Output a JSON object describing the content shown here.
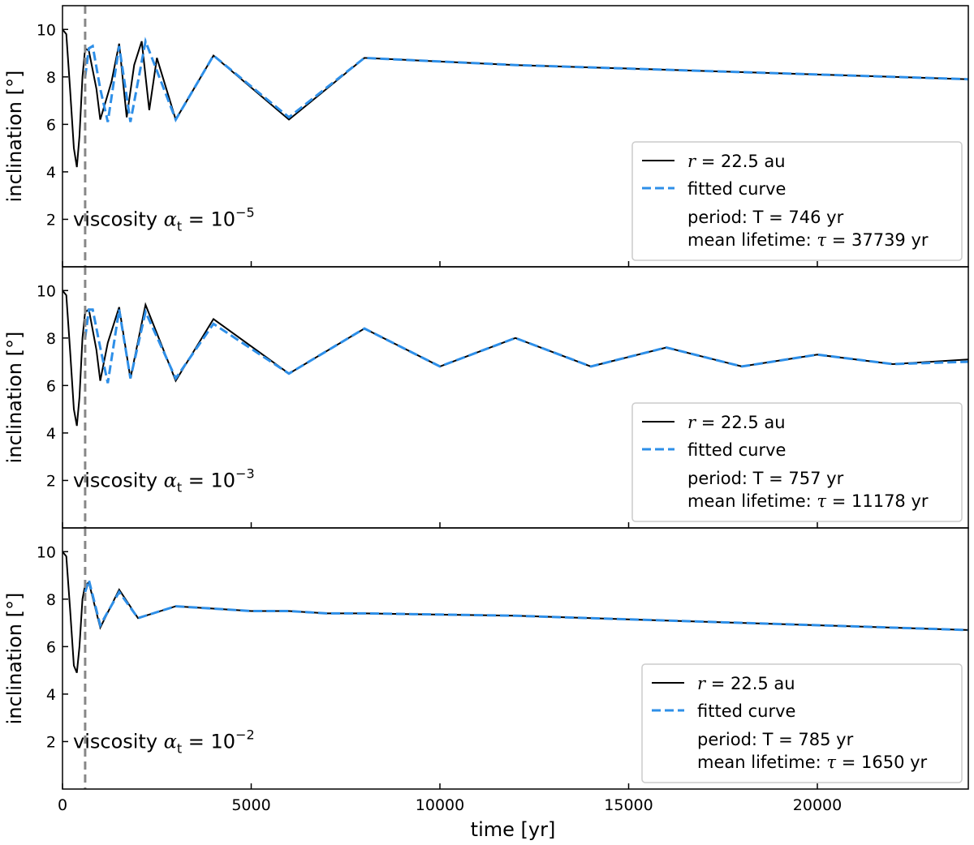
{
  "chart_data": [
    {
      "type": "line",
      "ylabel": "inclination [°]",
      "xlabel": "",
      "xlim": [
        0,
        24000
      ],
      "ylim": [
        0,
        11
      ],
      "yticks": [
        2,
        4,
        6,
        8,
        10
      ],
      "xticks": [
        0,
        5000,
        10000,
        15000,
        20000
      ],
      "xtick_labels_shown": false,
      "annotation": {
        "prefix": "viscosity ",
        "symbol": "α",
        "sub": "t",
        "eq": " = 10",
        "exp": "−5"
      },
      "vline_x": 600,
      "legend": {
        "position": "lower-right",
        "entries": [
          "r = 22.5 au",
          "fitted curve"
        ],
        "r_symbol": "r",
        "r_rest": " = 22.5 au",
        "fit_label": "fitted curve",
        "period_text": "period: T = 746 yr",
        "lifetime_prefix": "mean lifetime: ",
        "lifetime_symbol": "τ",
        "lifetime_rest": " = 37739 yr"
      },
      "series": [
        {
          "color": "#000000",
          "style": "solid",
          "x": [
            0,
            100,
            200,
            300,
            380,
            450,
            530,
            600,
            700,
            900,
            1000,
            1150,
            1300,
            1500,
            1700,
            1900,
            2100,
            2300,
            2500,
            3000,
            4000,
            6000,
            8000,
            12000,
            16000,
            20000,
            24000
          ],
          "y": [
            10.0,
            9.8,
            7.5,
            5.0,
            4.2,
            5.5,
            8.0,
            9.2,
            9.1,
            7.5,
            6.2,
            7.0,
            7.8,
            9.4,
            6.3,
            8.5,
            9.5,
            6.6,
            8.8,
            6.2,
            8.9,
            6.2,
            8.8,
            8.5,
            8.3,
            8.1,
            7.9
          ]
        },
        {
          "color": "#2e8fe8",
          "style": "dashed",
          "x": [
            600,
            700,
            800,
            1000,
            1200,
            1500,
            1800,
            2200,
            3000,
            4000,
            6000,
            8000,
            12000,
            16000,
            20000,
            24000
          ],
          "y": [
            8.0,
            9.2,
            9.3,
            7.5,
            6.1,
            9.3,
            6.1,
            9.5,
            6.2,
            8.9,
            6.3,
            8.8,
            8.5,
            8.3,
            8.1,
            7.9
          ]
        }
      ]
    },
    {
      "type": "line",
      "ylabel": "inclination [°]",
      "xlabel": "",
      "xlim": [
        0,
        24000
      ],
      "ylim": [
        0,
        11
      ],
      "yticks": [
        2,
        4,
        6,
        8,
        10
      ],
      "xticks": [
        0,
        5000,
        10000,
        15000,
        20000
      ],
      "xtick_labels_shown": false,
      "annotation": {
        "prefix": "viscosity ",
        "symbol": "α",
        "sub": "t",
        "eq": " = 10",
        "exp": "−3"
      },
      "vline_x": 600,
      "legend": {
        "position": "lower-right",
        "entries": [
          "r = 22.5 au",
          "fitted curve"
        ],
        "r_symbol": "r",
        "r_rest": " = 22.5 au",
        "fit_label": "fitted curve",
        "period_text": "period: T = 757 yr",
        "lifetime_prefix": "mean lifetime: ",
        "lifetime_symbol": "τ",
        "lifetime_rest": " = 11178 yr"
      },
      "series": [
        {
          "color": "#000000",
          "style": "solid",
          "x": [
            0,
            100,
            200,
            300,
            380,
            450,
            530,
            600,
            700,
            900,
            1000,
            1200,
            1500,
            1800,
            2200,
            3000,
            4000,
            6000,
            8000,
            10000,
            12000,
            14000,
            16000,
            18000,
            20000,
            22000,
            24000
          ],
          "y": [
            10.0,
            9.8,
            7.5,
            5.0,
            4.3,
            5.5,
            8.0,
            9.1,
            9.2,
            7.5,
            6.2,
            7.8,
            9.3,
            6.3,
            9.4,
            6.2,
            8.8,
            6.5,
            8.4,
            6.8,
            8.0,
            6.8,
            7.6,
            6.8,
            7.3,
            6.9,
            7.1
          ]
        },
        {
          "color": "#2e8fe8",
          "style": "dashed",
          "x": [
            600,
            700,
            800,
            1000,
            1200,
            1500,
            1800,
            2200,
            3000,
            4000,
            6000,
            8000,
            10000,
            12000,
            14000,
            16000,
            18000,
            20000,
            22000,
            24000
          ],
          "y": [
            8.0,
            9.2,
            9.2,
            7.6,
            6.1,
            9.2,
            6.3,
            9.1,
            6.3,
            8.6,
            6.5,
            8.4,
            6.8,
            8.0,
            6.8,
            7.6,
            6.8,
            7.3,
            6.9,
            7.0
          ]
        }
      ]
    },
    {
      "type": "line",
      "ylabel": "inclination [°]",
      "xlabel": "time [yr]",
      "xlim": [
        0,
        24000
      ],
      "ylim": [
        0,
        11
      ],
      "yticks": [
        2,
        4,
        6,
        8,
        10
      ],
      "xticks": [
        0,
        5000,
        10000,
        15000,
        20000
      ],
      "xtick_labels": [
        "0",
        "5000",
        "10000",
        "15000",
        "20000"
      ],
      "xtick_labels_shown": true,
      "annotation": {
        "prefix": "viscosity ",
        "symbol": "α",
        "sub": "t",
        "eq": " = 10",
        "exp": "−2"
      },
      "vline_x": 600,
      "legend": {
        "position": "lower-right",
        "entries": [
          "r = 22.5 au",
          "fitted curve"
        ],
        "r_symbol": "r",
        "r_rest": " = 22.5 au",
        "fit_label": "fitted curve",
        "period_text": "period: T = 785 yr",
        "lifetime_prefix": "mean lifetime: ",
        "lifetime_symbol": "τ",
        "lifetime_rest": " = 1650 yr"
      },
      "series": [
        {
          "color": "#000000",
          "style": "solid",
          "x": [
            0,
            100,
            200,
            300,
            380,
            450,
            530,
            600,
            700,
            1000,
            1500,
            2000,
            3000,
            4000,
            5000,
            6000,
            7000,
            8000,
            12000,
            16000,
            20000,
            24000
          ],
          "y": [
            10.0,
            9.8,
            7.6,
            5.2,
            4.9,
            6.0,
            8.0,
            8.6,
            8.7,
            6.8,
            8.4,
            7.2,
            7.7,
            7.6,
            7.5,
            7.5,
            7.4,
            7.4,
            7.3,
            7.1,
            6.9,
            6.7
          ]
        },
        {
          "color": "#2e8fe8",
          "style": "dashed",
          "x": [
            600,
            700,
            1000,
            1500,
            2000,
            3000,
            4000,
            5000,
            6000,
            7000,
            8000,
            12000,
            16000,
            20000,
            24000
          ],
          "y": [
            8.3,
            8.8,
            6.9,
            8.3,
            7.2,
            7.7,
            7.6,
            7.5,
            7.5,
            7.4,
            7.4,
            7.3,
            7.1,
            6.9,
            6.7
          ]
        }
      ]
    }
  ]
}
